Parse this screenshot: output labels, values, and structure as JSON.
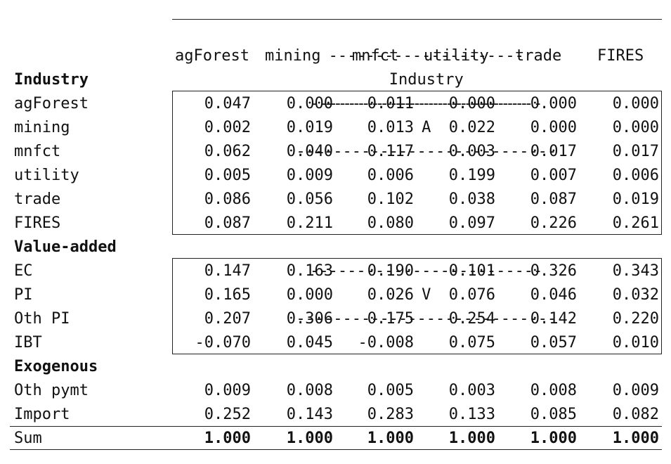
{
  "header": {
    "group_label": "Industry",
    "columns": [
      "agForest",
      "mining",
      "mnfct",
      "utility",
      "trade",
      "FIRES"
    ]
  },
  "sections": {
    "industry": {
      "label": "Industry",
      "matrix_label": "A",
      "rows": [
        {
          "label": "agForest",
          "values": [
            "0.047",
            "0.000",
            "0.011",
            "0.000",
            "0.000",
            "0.000"
          ]
        },
        {
          "label": "mining",
          "values": [
            "0.002",
            "0.019",
            "0.013",
            "0.022",
            "0.000",
            "0.000"
          ]
        },
        {
          "label": "mnfct",
          "values": [
            "0.062",
            "0.040",
            "0.117",
            "0.003",
            "0.017",
            "0.017"
          ]
        },
        {
          "label": "utility",
          "values": [
            "0.005",
            "0.009",
            "0.006",
            "0.199",
            "0.007",
            "0.006"
          ]
        },
        {
          "label": "trade",
          "values": [
            "0.086",
            "0.056",
            "0.102",
            "0.038",
            "0.087",
            "0.019"
          ]
        },
        {
          "label": "FIRES",
          "values": [
            "0.087",
            "0.211",
            "0.080",
            "0.097",
            "0.226",
            "0.261"
          ]
        }
      ]
    },
    "value_added": {
      "label": "Value-added",
      "matrix_label": "V",
      "rows": [
        {
          "label": "EC",
          "values": [
            "0.147",
            "0.163",
            "0.190",
            "0.101",
            "0.326",
            "0.343"
          ]
        },
        {
          "label": "PI",
          "values": [
            "0.165",
            "0.000",
            "0.026",
            "0.076",
            "0.046",
            "0.032"
          ]
        },
        {
          "label": "Oth PI",
          "values": [
            "0.207",
            "0.306",
            "0.175",
            "0.254",
            "0.142",
            "0.220"
          ]
        },
        {
          "label": "IBT",
          "values": [
            "-0.070",
            "0.045",
            "-0.008",
            "0.075",
            "0.057",
            "0.010"
          ]
        }
      ]
    },
    "exogenous": {
      "label": "Exogenous",
      "rows": [
        {
          "label": "Oth pymt",
          "values": [
            "0.009",
            "0.008",
            "0.005",
            "0.003",
            "0.008",
            "0.009"
          ]
        },
        {
          "label": "Import",
          "values": [
            "0.252",
            "0.143",
            "0.283",
            "0.133",
            "0.085",
            "0.082"
          ]
        }
      ]
    },
    "sum": {
      "label": "Sum",
      "values": [
        "1.000",
        "1.000",
        "1.000",
        "1.000",
        "1.000",
        "1.000"
      ]
    }
  }
}
